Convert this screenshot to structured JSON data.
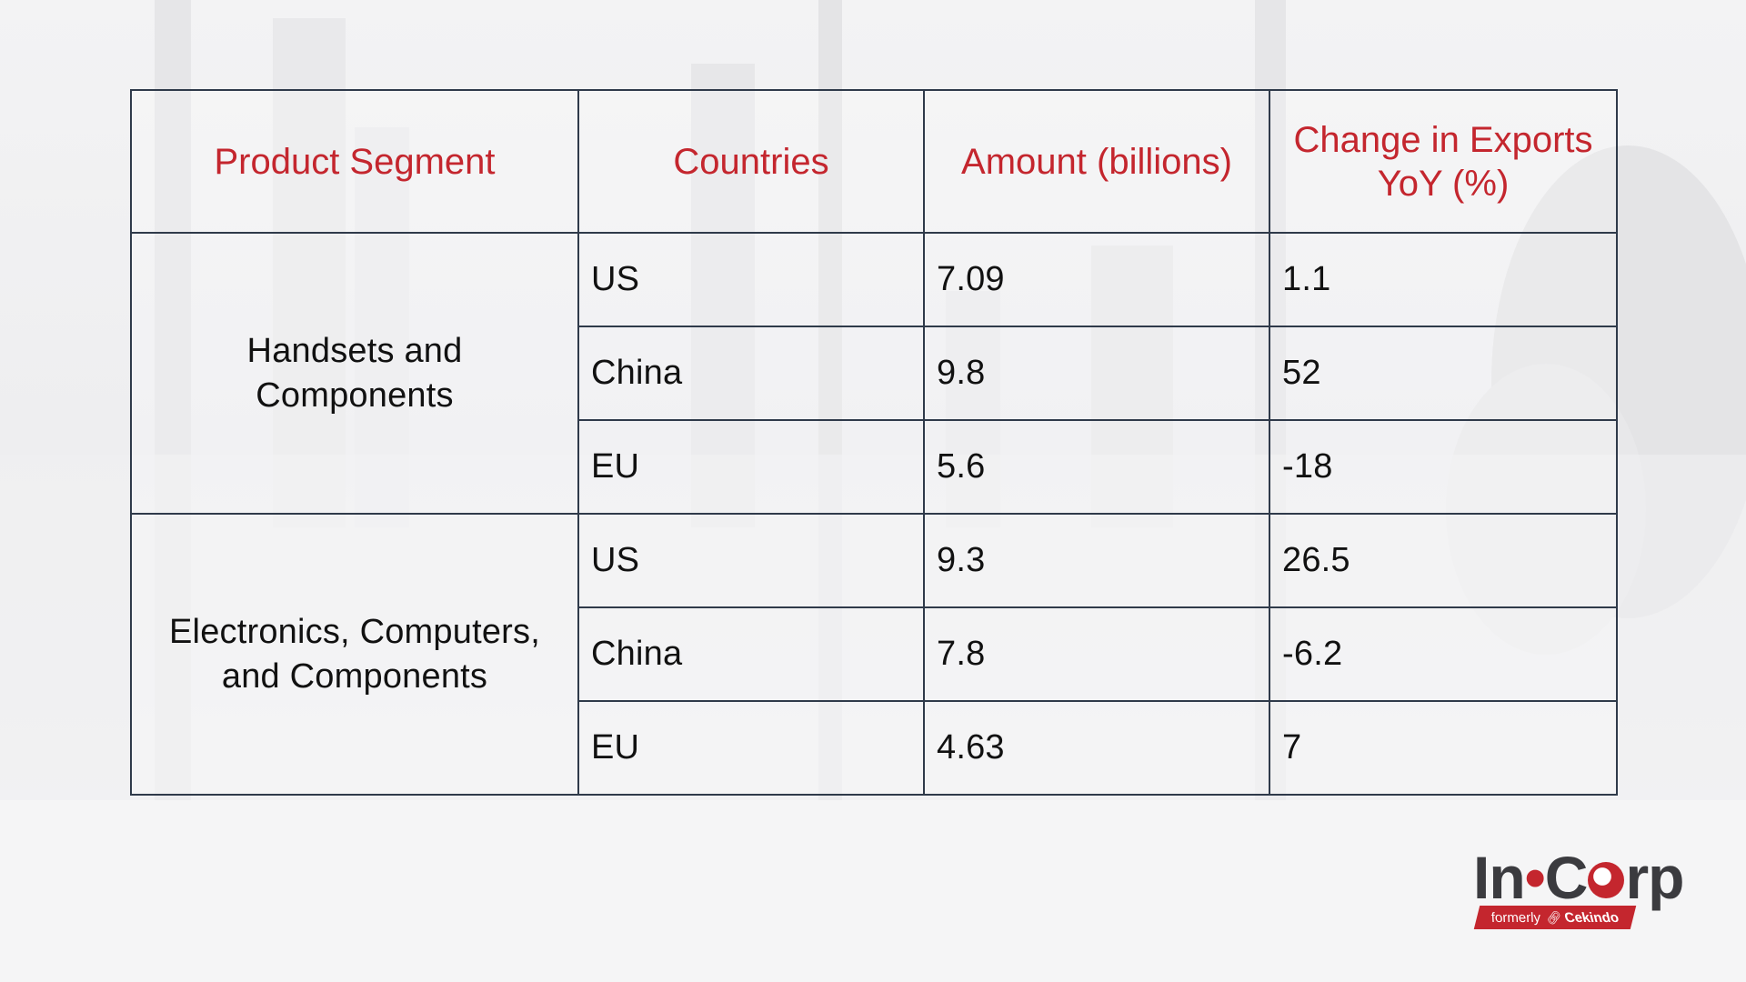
{
  "table": {
    "headers": [
      "Product Segment",
      "Countries",
      "Amount (billions)",
      "Change in Exports YoY (%)"
    ],
    "groups": [
      {
        "segment": "Handsets and Components",
        "rows": [
          {
            "country": "US",
            "amount": "7.09",
            "change": "1.1"
          },
          {
            "country": "China",
            "amount": "9.8",
            "change": "52"
          },
          {
            "country": "EU",
            "amount": "5.6",
            "change": "-18"
          }
        ]
      },
      {
        "segment": "Electronics, Computers, and Components",
        "rows": [
          {
            "country": "US",
            "amount": "9.3",
            "change": "26.5"
          },
          {
            "country": "China",
            "amount": "7.8",
            "change": "-6.2"
          },
          {
            "country": "EU",
            "amount": "4.63",
            "change": "7"
          }
        ]
      }
    ]
  },
  "logo": {
    "part1": "In",
    "dot": "•",
    "part2_a": "C",
    "part2_b": "rp",
    "tag_formerly": "formerly",
    "tag_brand": "Cekindo",
    "icon": "link-icon",
    "accent_color": "#c4262e",
    "text_color": "#3b3b3f"
  },
  "colors": {
    "header_text": "#c4262e",
    "body_text": "#111111",
    "border": "#2f3a4a"
  }
}
